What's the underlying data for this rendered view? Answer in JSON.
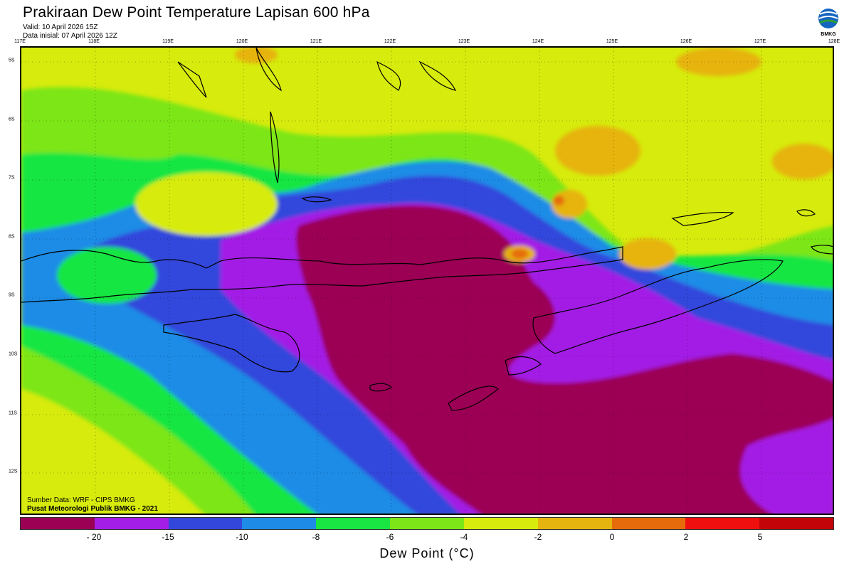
{
  "title": "Prakiraan Dew Point Temperature Lapisan 600 hPa",
  "valid": "Valid: 10 April 2026 15Z",
  "init": "Data inisial: 07 April 2026 12Z",
  "logo_text": "BMKG",
  "source_line1": "Sumber Data: WRF - CIPS BMKG",
  "source_line2": "Pusat Meteorologi Publik BMKG - 2021",
  "lon_labels": [
    "117E",
    "118E",
    "119E",
    "120E",
    "121E",
    "122E",
    "123E",
    "124E",
    "125E",
    "126E",
    "127E",
    "128E"
  ],
  "lat_labels": [
    "5S",
    "6S",
    "7S",
    "8S",
    "9S",
    "10S",
    "11S",
    "12S"
  ],
  "colorbar": {
    "colors": [
      "#9c0055",
      "#a31ee6",
      "#3347dc",
      "#1e8ce6",
      "#19e642",
      "#7de619",
      "#d7eb0d",
      "#e6b40f",
      "#e66b0a",
      "#f00f0f",
      "#c3050a"
    ],
    "ticks": [
      "- 20",
      "-15",
      "-10",
      "-8",
      "-6",
      "-4",
      "-2",
      "0",
      "2",
      "5"
    ],
    "label": "Dew Point (°C)"
  }
}
